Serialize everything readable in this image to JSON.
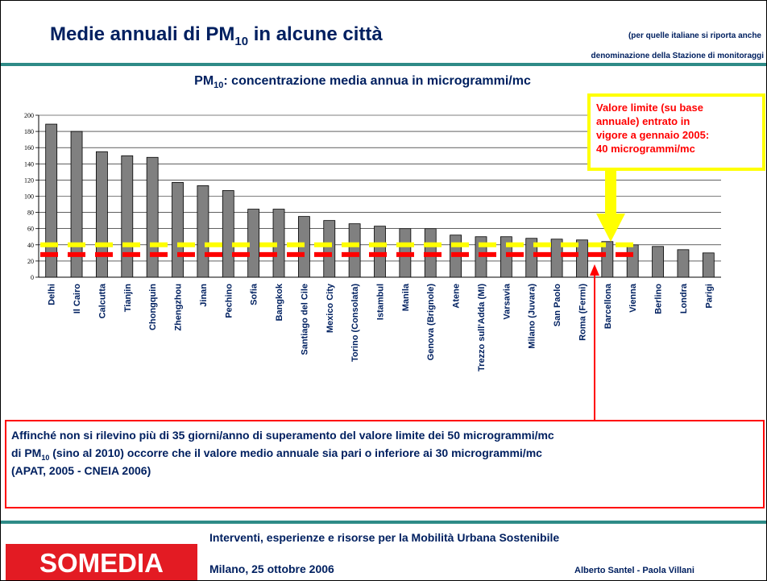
{
  "header": {
    "title_parts": [
      "Medie annuali di PM",
      "10",
      " in alcune città"
    ],
    "note_lines": [
      "(per quelle italiane si riporta anche",
      "denominazione della Stazione di monitoraggi"
    ]
  },
  "chart_data": {
    "type": "bar",
    "title_parts": [
      "PM",
      "10",
      ": concentrazione media annua in microgrammi/mc"
    ],
    "categories": [
      "Delhi",
      "Il Cairo",
      "Calcutta",
      "Tianjin",
      "Chongquin",
      "Zhengzhou",
      "Jinan",
      "Pechino",
      "Sofia",
      "Bangkok",
      "Santiago del Cile",
      "Mexico City",
      "Torino (Consolata)",
      "Istambul",
      "Manila",
      "Genova (Brignole)",
      "Atene",
      "Trezzo sull'Adda (MI)",
      "Varsavia",
      "Milano (Juvara)",
      "San Paolo",
      "Roma (Fermi)",
      "Barcellona",
      "Vienna",
      "Berlino",
      "Londra",
      "Parigi"
    ],
    "values": [
      189,
      180,
      155,
      150,
      148,
      117,
      113,
      107,
      84,
      84,
      75,
      70,
      66,
      63,
      60,
      60,
      52,
      50,
      50,
      48,
      47,
      46,
      44,
      40,
      38,
      34,
      30
    ],
    "color": "#808080",
    "ylim": [
      0,
      200
    ],
    "yticks": [
      0,
      20,
      40,
      60,
      80,
      100,
      120,
      140,
      160,
      180,
      200
    ],
    "grid": true,
    "reference_lines": [
      {
        "value": 40,
        "color": "#ffff00"
      },
      {
        "value": 28,
        "color": "#ff0000"
      }
    ]
  },
  "limit_box": {
    "lines": [
      "Valore limite (su base",
      "annuale) entrato in",
      "vigore a gennaio 2005:",
      "40 microgrammi/mc"
    ]
  },
  "note_box": {
    "line1": "Affinché non si rilevino più di 35 giorni/anno di superamento del valore limite dei 50 microgrammi/mc",
    "line2_parts": [
      "di PM",
      "10",
      " (sino al 2010)  occorre che il valore medio  annuale sia pari o inferiore ai 30 microgrammi/mc"
    ],
    "line3": "(APAT, 2005 - CNEIA 2006)"
  },
  "footer": {
    "logo": "SOMEDIA",
    "line1": "Interventi, esperienze e risorse per la  Mobilità Urbana Sostenibile",
    "line2": "Milano, 25 ottobre 2006",
    "authors": "Alberto Santel - Paola Villani"
  }
}
